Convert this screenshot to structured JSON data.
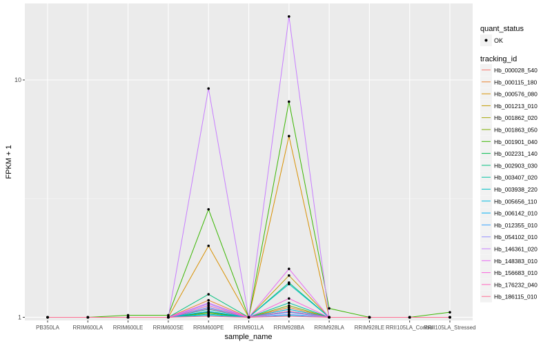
{
  "chart_data": {
    "type": "line",
    "xlabel": "sample_name",
    "ylabel": "FPKM + 1",
    "y_scale": "log10",
    "ylim": [
      0.97,
      21
    ],
    "y_ticks": [
      1,
      10
    ],
    "grid": true,
    "legend_placement": "right",
    "categories": [
      "PB350LA",
      "RRIM600LA",
      "RRIM600LE",
      "RRIM600SE",
      "RRIM600PE",
      "RRIM901LA",
      "RRIM928BA",
      "RRIM928LA",
      "RRIM928LE",
      "RRII105LA_Control",
      "RRII105LA_Stressed"
    ],
    "shape_legend": {
      "title": "quant_status",
      "entries": [
        "OK"
      ]
    },
    "color_legend_title": "tracking_id",
    "series": [
      {
        "name": "Hb_000028_540",
        "color": "#F8766D",
        "values": [
          1,
          1,
          1,
          1,
          1.05,
          1,
          1.05,
          1,
          1,
          1,
          1
        ]
      },
      {
        "name": "Hb_000115_180",
        "color": "#EA8331",
        "values": [
          1,
          1,
          1,
          1,
          1.18,
          1,
          1.1,
          1,
          1,
          1,
          1
        ]
      },
      {
        "name": "Hb_000576_080",
        "color": "#D89000",
        "values": [
          1,
          1,
          1,
          1,
          2.0,
          1,
          5.8,
          1,
          1,
          1,
          1
        ]
      },
      {
        "name": "Hb_001213_010",
        "color": "#C09B00",
        "values": [
          1,
          1,
          1,
          1,
          1.12,
          1,
          1.5,
          1,
          1,
          1,
          1
        ]
      },
      {
        "name": "Hb_001862_020",
        "color": "#A3A500",
        "values": [
          1,
          1,
          1,
          1,
          1.06,
          1,
          1.08,
          1,
          1,
          1,
          1
        ]
      },
      {
        "name": "Hb_001863_050",
        "color": "#7CAE00",
        "values": [
          1,
          1,
          1,
          1,
          1.04,
          1,
          1.12,
          1,
          1,
          1,
          1
        ]
      },
      {
        "name": "Hb_001901_040",
        "color": "#39B600",
        "values": [
          1,
          1,
          1.02,
          1.02,
          2.85,
          1,
          8.1,
          1.09,
          1,
          1,
          1.05
        ]
      },
      {
        "name": "Hb_002231_140",
        "color": "#00BB4E",
        "values": [
          1,
          1,
          1,
          1,
          1.05,
          1,
          1.06,
          1,
          1,
          1,
          1
        ]
      },
      {
        "name": "Hb_002903_030",
        "color": "#00BF7D",
        "values": [
          1,
          1,
          1,
          1,
          1.25,
          1,
          1.4,
          1,
          1,
          1,
          1
        ]
      },
      {
        "name": "Hb_003407_020",
        "color": "#00C1A3",
        "values": [
          1,
          1,
          1,
          1,
          1.08,
          1,
          1.15,
          1,
          1,
          1,
          1
        ]
      },
      {
        "name": "Hb_003938_220",
        "color": "#00BFC4",
        "values": [
          1,
          1,
          1,
          1,
          1.03,
          1,
          1.38,
          1,
          1,
          1,
          1
        ]
      },
      {
        "name": "Hb_005656_110",
        "color": "#00BAE0",
        "values": [
          1,
          1,
          1,
          1,
          1.02,
          1,
          1.02,
          1,
          1,
          1,
          1
        ]
      },
      {
        "name": "Hb_006142_010",
        "color": "#00B0F6",
        "values": [
          1,
          1,
          1,
          1,
          1.06,
          1,
          1.08,
          1,
          1,
          1,
          1
        ]
      },
      {
        "name": "Hb_012355_010",
        "color": "#35A2FF",
        "values": [
          1,
          1,
          1,
          1,
          1.1,
          1,
          1.05,
          1,
          1,
          1,
          1
        ]
      },
      {
        "name": "Hb_054102_010",
        "color": "#9590FF",
        "values": [
          1,
          1,
          1,
          1,
          1.14,
          1,
          1.03,
          1,
          1,
          1,
          1
        ]
      },
      {
        "name": "Hb_146361_020",
        "color": "#C77CFF",
        "values": [
          1,
          1,
          1,
          1,
          9.2,
          1,
          18.5,
          1,
          1,
          1,
          1
        ]
      },
      {
        "name": "Hb_148383_010",
        "color": "#E76BF3",
        "values": [
          1,
          1,
          1,
          1,
          1.15,
          1,
          1.6,
          1,
          1,
          1,
          1
        ]
      },
      {
        "name": "Hb_156683_010",
        "color": "#FA62DB",
        "values": [
          1,
          1,
          1,
          1,
          1.12,
          1,
          1.2,
          1,
          1,
          1,
          1
        ]
      },
      {
        "name": "Hb_176232_040",
        "color": "#FF62BC",
        "values": [
          1,
          1,
          1,
          1,
          1.09,
          1,
          1.06,
          1,
          1,
          1,
          1
        ]
      },
      {
        "name": "Hb_186115_010",
        "color": "#FF6C91",
        "values": [
          1,
          1,
          1,
          1,
          1.01,
          1,
          1.01,
          1,
          1,
          1,
          1
        ]
      }
    ]
  }
}
